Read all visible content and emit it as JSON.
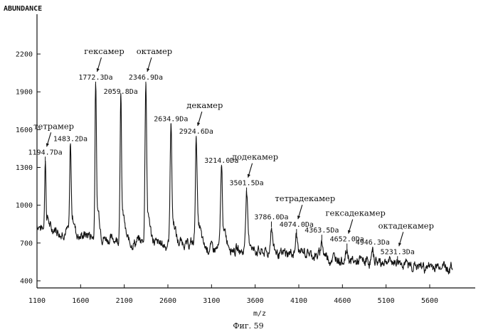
{
  "chart_data": {
    "type": "line",
    "title": "",
    "ylabel": "ABUNDANCE",
    "xlabel": "m/z",
    "caption": "Фиг. 59",
    "xlim": [
      1100,
      5900
    ],
    "ylim": [
      400,
      2400
    ],
    "x_ticks": [
      1100,
      1600,
      2100,
      2600,
      3100,
      3600,
      4100,
      4600,
      5100,
      5600
    ],
    "x_tick_labels": [
      "1100",
      "1600",
      "2100",
      "2600",
      "3100",
      "3600",
      "4100",
      "4600",
      "5100",
      "5600"
    ],
    "y_ticks": [
      400,
      700,
      1000,
      1300,
      1600,
      1900,
      2200
    ],
    "y_tick_labels": [
      "400",
      "700",
      "1000",
      "1300",
      "1600",
      "1900",
      "2200"
    ],
    "baseline": [
      [
        1100,
        840
      ],
      [
        1300,
        800
      ],
      [
        1500,
        780
      ],
      [
        1700,
        760
      ],
      [
        1900,
        740
      ],
      [
        2100,
        720
      ],
      [
        2500,
        700
      ],
      [
        3000,
        680
      ],
      [
        3500,
        650
      ],
      [
        4000,
        620
      ],
      [
        4500,
        580
      ],
      [
        5000,
        545
      ],
      [
        5500,
        510
      ],
      [
        5850,
        500
      ]
    ],
    "peaks": [
      {
        "mz": 1194.7,
        "label": "1194.7Da",
        "intensity": 1335
      },
      {
        "mz": 1483.2,
        "label": "1483.2Da",
        "intensity": 1440
      },
      {
        "mz": 1772.3,
        "label": "1772.3Da",
        "intensity": 1930
      },
      {
        "mz": 2059.8,
        "label": "2059.8Da",
        "intensity": 1815
      },
      {
        "mz": 2346.9,
        "label": "2346.9Da",
        "intensity": 1930
      },
      {
        "mz": 2634.9,
        "label": "2634.9Da",
        "intensity": 1600
      },
      {
        "mz": 2924.6,
        "label": "2924.6Da",
        "intensity": 1500
      },
      {
        "mz": 3214.0,
        "label": "3214.0Da",
        "intensity": 1270
      },
      {
        "mz": 3501.5,
        "label": "3501.5Da",
        "intensity": 1090
      },
      {
        "mz": 3786.0,
        "label": "3786.0Da",
        "intensity": 820
      },
      {
        "mz": 4074.0,
        "label": "4074.0Da",
        "intensity": 760
      },
      {
        "mz": 4363.5,
        "label": "4363.5Da",
        "intensity": 715
      },
      {
        "mz": 4652.0,
        "label": "4652.0Da",
        "intensity": 645
      },
      {
        "mz": 4946.3,
        "label": "4946.3Da",
        "intensity": 620
      },
      {
        "mz": 5231.3,
        "label": "5231.3Da",
        "intensity": 545
      }
    ],
    "annotations": [
      {
        "text": "тетрамер",
        "peak": 1194.7
      },
      {
        "text": "гексамер",
        "peak": 1772.3
      },
      {
        "text": "октамер",
        "peak": 2346.9
      },
      {
        "text": "декамер",
        "peak": 2924.6
      },
      {
        "text": "додекамер",
        "peak": 3501.5
      },
      {
        "text": "тетрадекамер",
        "peak": 4074.0
      },
      {
        "text": "гексадекамер",
        "peak": 4652.0
      },
      {
        "text": "октадекамер",
        "peak": 5231.3
      }
    ]
  }
}
